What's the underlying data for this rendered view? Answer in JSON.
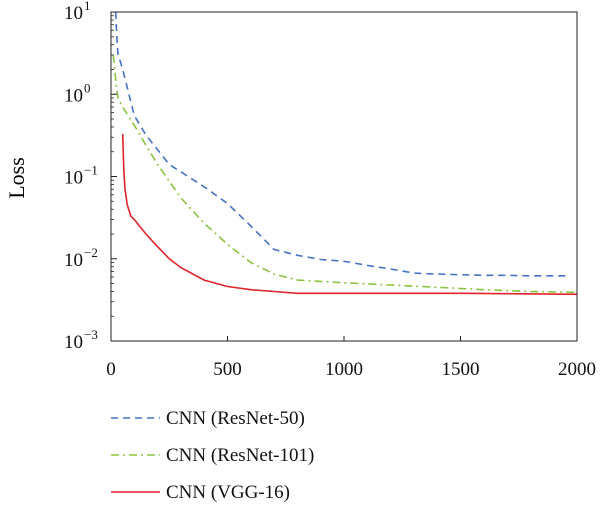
{
  "chart_data": {
    "type": "line",
    "xlabel": "",
    "ylabel": "Loss",
    "yscale": "log",
    "xlim": [
      0,
      2000
    ],
    "ylim": [
      0.001,
      10
    ],
    "x_ticks": [
      0,
      500,
      1000,
      1500,
      2000
    ],
    "x_tick_labels": [
      "0",
      "500",
      "1000",
      "1500",
      "2000"
    ],
    "y_ticks": [
      {
        "value": 10,
        "base": "10",
        "exp": "1"
      },
      {
        "value": 1,
        "base": "10",
        "exp": "0"
      },
      {
        "value": 0.1,
        "base": "10",
        "exp": "−1"
      },
      {
        "value": 0.01,
        "base": "10",
        "exp": "−2"
      },
      {
        "value": 0.001,
        "base": "10",
        "exp": "−3"
      }
    ],
    "grid": false,
    "legend_position": "bottom-left",
    "series": [
      {
        "name": "CNN (ResNet-50)",
        "color": "#4472c4",
        "style": "dashed",
        "x": [
          20,
          25,
          30,
          40,
          50,
          70,
          100,
          150,
          250,
          400,
          500,
          600,
          700,
          800,
          900,
          1000,
          1100,
          1200,
          1300,
          1400,
          1500,
          1600,
          1700,
          1800,
          1900,
          1960
        ],
        "y": [
          10,
          5,
          3,
          2.5,
          2.0,
          1.2,
          0.55,
          0.32,
          0.14,
          0.075,
          0.047,
          0.025,
          0.013,
          0.011,
          0.0098,
          0.0093,
          0.0083,
          0.0075,
          0.0067,
          0.0065,
          0.0064,
          0.0063,
          0.0063,
          0.0062,
          0.0062,
          0.0062
        ]
      },
      {
        "name": "CNN (ResNet-101)",
        "color": "#8ac43f",
        "style": "dashdot",
        "x": [
          10,
          20,
          30,
          50,
          100,
          150,
          200,
          300,
          400,
          500,
          600,
          700,
          800,
          1000,
          1200,
          1400,
          1600,
          1800,
          2000
        ],
        "y": [
          3,
          1.5,
          0.9,
          0.7,
          0.42,
          0.24,
          0.14,
          0.055,
          0.027,
          0.015,
          0.009,
          0.0065,
          0.0055,
          0.0051,
          0.0048,
          0.0045,
          0.0042,
          0.004,
          0.0039
        ]
      },
      {
        "name": "CNN (VGG-16)",
        "color": "#e0242b",
        "style": "solid",
        "x": [
          50,
          55,
          60,
          70,
          85,
          100,
          150,
          200,
          250,
          300,
          400,
          500,
          600,
          700,
          800,
          900,
          1000,
          1200,
          1500,
          2000
        ],
        "y": [
          0.33,
          0.12,
          0.07,
          0.045,
          0.033,
          0.03,
          0.02,
          0.014,
          0.01,
          0.0078,
          0.0055,
          0.0046,
          0.0042,
          0.004,
          0.0038,
          0.0038,
          0.0038,
          0.0038,
          0.0038,
          0.0037
        ]
      }
    ]
  }
}
